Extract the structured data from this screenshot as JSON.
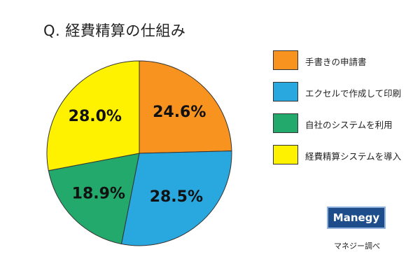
{
  "title": "Q. 経費精算の仕組み",
  "brand": {
    "logo_text": "Manegy",
    "source_text": "マネジー調べ"
  },
  "chart_data": {
    "type": "pie",
    "title": "Q. 経費精算の仕組み",
    "categories": [
      "手書きの申請書",
      "エクセルで作成して印刷",
      "自社のシステムを利用",
      "経費精算システムを導入"
    ],
    "values": [
      24.6,
      28.5,
      18.9,
      28.0
    ],
    "value_labels": [
      "24.6%",
      "28.5%",
      "18.9%",
      "28.0%"
    ],
    "colors": [
      "#f7931e",
      "#29a8e0",
      "#23a96b",
      "#fff200"
    ],
    "start_angle_deg": 0,
    "direction": "clockwise",
    "legend_position": "right"
  }
}
